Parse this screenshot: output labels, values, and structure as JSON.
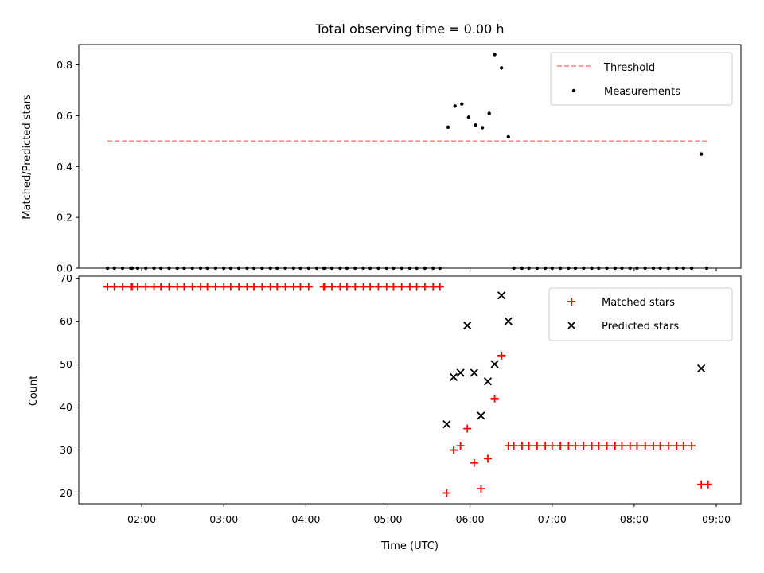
{
  "chart_data": [
    {
      "type": "scatter",
      "title": "Total observing time = 0.00 h",
      "xlabel": "",
      "ylabel": "Matched/Predicted stars",
      "xlim": [
        "01:14",
        "09:18"
      ],
      "ylim": [
        0,
        0.88
      ],
      "yticks": [
        "0.0",
        "0.2",
        "0.4",
        "0.6",
        "0.8"
      ],
      "yticks_values": [
        0,
        0.2,
        0.4,
        0.6,
        0.8
      ],
      "legend": {
        "placement": "top-right",
        "entries": [
          {
            "label": "Threshold",
            "style": "dashed-line",
            "color": "#ff7f7f"
          },
          {
            "label": "Measurements",
            "style": "dot",
            "color": "#000000"
          }
        ]
      },
      "threshold": {
        "value": 0.5,
        "x_start": "01:35",
        "x_end": "08:53",
        "color": "#ff7f7f"
      },
      "points_zero": [
        "01:35",
        "01:40",
        "01:46",
        "01:52",
        "01:53",
        "01:57",
        "02:03",
        "02:09",
        "02:14",
        "02:20",
        "02:26",
        "02:31",
        "02:37",
        "02:43",
        "02:48",
        "02:54",
        "03:00",
        "03:05",
        "03:11",
        "03:17",
        "03:22",
        "03:28",
        "03:34",
        "03:39",
        "03:45",
        "03:51",
        "03:56",
        "04:02",
        "04:08",
        "04:13",
        "04:14",
        "04:19",
        "04:25",
        "04:30",
        "04:36",
        "04:42",
        "04:47",
        "04:53",
        "04:59",
        "05:04",
        "05:10",
        "05:16",
        "05:21",
        "05:27",
        "05:33",
        "05:38",
        "06:32",
        "06:38",
        "06:43",
        "06:49",
        "06:55",
        "07:00",
        "07:06",
        "07:12",
        "07:17",
        "07:23",
        "07:29",
        "07:34",
        "07:40",
        "07:46",
        "07:51",
        "07:57",
        "08:02",
        "08:08",
        "08:14",
        "08:19",
        "08:25",
        "08:31",
        "08:36",
        "08:42",
        "08:53"
      ],
      "points": [
        {
          "x": "05:44",
          "y": 0.555
        },
        {
          "x": "05:49",
          "y": 0.638
        },
        {
          "x": "05:54",
          "y": 0.646
        },
        {
          "x": "05:59",
          "y": 0.594
        },
        {
          "x": "06:04",
          "y": 0.563
        },
        {
          "x": "06:09",
          "y": 0.553
        },
        {
          "x": "06:14",
          "y": 0.609
        },
        {
          "x": "06:18",
          "y": 0.841
        },
        {
          "x": "06:23",
          "y": 0.788
        },
        {
          "x": "06:28",
          "y": 0.517
        },
        {
          "x": "08:49",
          "y": 0.449
        }
      ],
      "color": "#000000"
    },
    {
      "type": "scatter",
      "title": "",
      "xlabel": "Time (UTC)",
      "ylabel": "Count",
      "xlim": [
        "01:14",
        "09:18"
      ],
      "ylim": [
        17.5,
        70.5
      ],
      "xticks": [
        "02:00",
        "03:00",
        "04:00",
        "05:00",
        "06:00",
        "07:00",
        "08:00",
        "09:00"
      ],
      "yticks": [
        "20",
        "30",
        "40",
        "50",
        "60",
        "70"
      ],
      "yticks_values": [
        20,
        30,
        40,
        50,
        60,
        70
      ],
      "legend": {
        "placement": "top-right",
        "entries": [
          {
            "label": "Matched stars",
            "style": "plus",
            "color": "#ff0000"
          },
          {
            "label": "Predicted stars",
            "style": "x",
            "color": "#000000"
          }
        ]
      },
      "series": [
        {
          "name": "Matched stars",
          "marker": "plus",
          "color": "#ff0000",
          "constant_runs": [
            {
              "y": 68,
              "x": [
                "01:35",
                "01:40",
                "01:46",
                "01:52",
                "01:53",
                "01:57",
                "02:03",
                "02:09",
                "02:14",
                "02:20",
                "02:26",
                "02:31",
                "02:37",
                "02:43",
                "02:48",
                "02:54",
                "03:00",
                "03:05",
                "03:11",
                "03:17",
                "03:22",
                "03:28",
                "03:34",
                "03:39",
                "03:45",
                "03:51",
                "03:56",
                "04:02",
                "04:13",
                "04:14",
                "04:19",
                "04:25",
                "04:30",
                "04:36",
                "04:42",
                "04:47",
                "04:53",
                "04:59",
                "05:04",
                "05:10",
                "05:16",
                "05:21",
                "05:27",
                "05:33",
                "05:38"
              ]
            },
            {
              "y": 31,
              "x": [
                "06:28",
                "06:32",
                "06:38",
                "06:43",
                "06:49",
                "06:55",
                "07:00",
                "07:06",
                "07:12",
                "07:17",
                "07:23",
                "07:29",
                "07:34",
                "07:40",
                "07:46",
                "07:51",
                "07:57",
                "08:02",
                "08:08",
                "08:14",
                "08:19",
                "08:25",
                "08:31",
                "08:36",
                "08:42"
              ]
            }
          ],
          "points": [
            {
              "x": "05:43",
              "y": 20
            },
            {
              "x": "05:48",
              "y": 30
            },
            {
              "x": "05:53",
              "y": 31
            },
            {
              "x": "05:58",
              "y": 35
            },
            {
              "x": "06:03",
              "y": 27
            },
            {
              "x": "06:08",
              "y": 21
            },
            {
              "x": "06:13",
              "y": 28
            },
            {
              "x": "06:18",
              "y": 42
            },
            {
              "x": "06:23",
              "y": 52
            },
            {
              "x": "08:49",
              "y": 22
            },
            {
              "x": "08:54",
              "y": 22
            }
          ]
        },
        {
          "name": "Predicted stars",
          "marker": "x",
          "color": "#000000",
          "points": [
            {
              "x": "05:43",
              "y": 36
            },
            {
              "x": "05:48",
              "y": 47
            },
            {
              "x": "05:53",
              "y": 48
            },
            {
              "x": "05:58",
              "y": 59
            },
            {
              "x": "06:03",
              "y": 48
            },
            {
              "x": "06:08",
              "y": 38
            },
            {
              "x": "06:13",
              "y": 46
            },
            {
              "x": "06:18",
              "y": 50
            },
            {
              "x": "06:23",
              "y": 66
            },
            {
              "x": "06:28",
              "y": 60
            },
            {
              "x": "08:49",
              "y": 49
            }
          ]
        }
      ]
    }
  ]
}
